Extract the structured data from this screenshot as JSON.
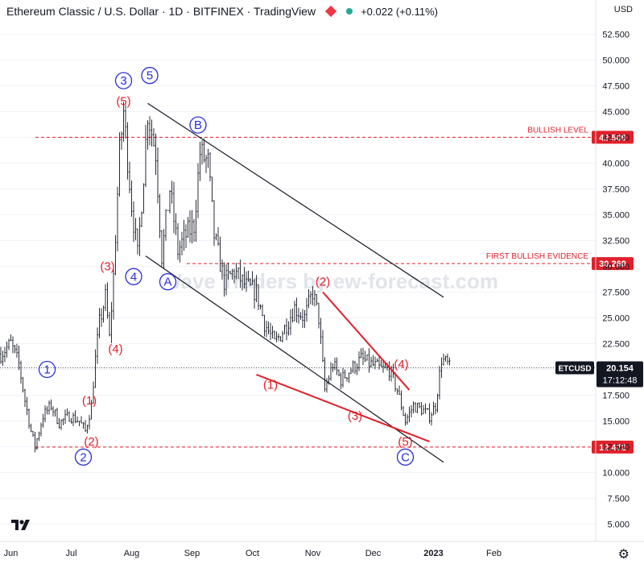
{
  "header": {
    "title": "Ethereum Classic / U.S. Dollar · 1D · BITFINEX · TradingView",
    "change": "+0.022 (+0.11%)"
  },
  "currency_label": "USD",
  "watermark": "Wave Traders by ew-forecast.com",
  "colors": {
    "wave_blue": "#2a2ed8",
    "wave_red": "#e0202a",
    "level_red": "#e0202a",
    "candle": "#131722",
    "channel": "#131722"
  },
  "chart_data": {
    "type": "candlestick",
    "symbol": "ETCUSD",
    "last_price": "20.154",
    "countdown": "17:12:48",
    "x_ticks": [
      "Jun",
      "Jul",
      "Aug",
      "Sep",
      "Oct",
      "Nov",
      "Dec",
      "2023",
      "Feb"
    ],
    "y_ticks": [
      "52.500",
      "50.000",
      "47.500",
      "45.000",
      "42.500",
      "40.000",
      "37.500",
      "35.000",
      "32.500",
      "30.000",
      "27.500",
      "25.000",
      "22.500",
      "20.000",
      "17.500",
      "15.000",
      "12.500",
      "10.000",
      "7.500",
      "5.000"
    ],
    "ylim": [
      3.5,
      54.5
    ],
    "levels": [
      {
        "label": "BULLISH LEVEL",
        "value": 42.509,
        "price_label": "42.509"
      },
      {
        "label": "FIRST BULLISH EVIDENCE",
        "value": 30.26,
        "price_label": "30.260"
      },
      {
        "label": "",
        "value": 12.472,
        "price_label": "12.472"
      }
    ],
    "price_path": [
      [
        "2022-06-01",
        21.5
      ],
      [
        "2022-06-06",
        22.5
      ],
      [
        "2022-06-10",
        20.5
      ],
      [
        "2022-06-13",
        17.0
      ],
      [
        "2022-06-16",
        14.0
      ],
      [
        "2022-06-18",
        12.5
      ],
      [
        "2022-06-22",
        15.5
      ],
      [
        "2022-06-26",
        16.5
      ],
      [
        "2022-06-30",
        14.8
      ],
      [
        "2022-07-05",
        15.5
      ],
      [
        "2022-07-10",
        15.0
      ],
      [
        "2022-07-13",
        14.0
      ],
      [
        "2022-07-16",
        16.5
      ],
      [
        "2022-07-18",
        21.0
      ],
      [
        "2022-07-20",
        24.5
      ],
      [
        "2022-07-23",
        27.0
      ],
      [
        "2022-07-25",
        23.0
      ],
      [
        "2022-07-27",
        29.0
      ],
      [
        "2022-07-30",
        41.0
      ],
      [
        "2022-08-01",
        45.0
      ],
      [
        "2022-08-05",
        36.0
      ],
      [
        "2022-08-08",
        31.0
      ],
      [
        "2022-08-11",
        39.0
      ],
      [
        "2022-08-13",
        45.0
      ],
      [
        "2022-08-17",
        41.0
      ],
      [
        "2022-08-20",
        31.0
      ],
      [
        "2022-08-24",
        37.5
      ],
      [
        "2022-08-28",
        31.5
      ],
      [
        "2022-09-01",
        33.0
      ],
      [
        "2022-09-05",
        34.0
      ],
      [
        "2022-09-08",
        41.0
      ],
      [
        "2022-09-12",
        40.0
      ],
      [
        "2022-09-15",
        33.0
      ],
      [
        "2022-09-20",
        28.5
      ],
      [
        "2022-09-25",
        29.5
      ],
      [
        "2022-10-01",
        28.0
      ],
      [
        "2022-10-06",
        27.5
      ],
      [
        "2022-10-10",
        24.5
      ],
      [
        "2022-10-15",
        22.5
      ],
      [
        "2022-10-20",
        24.0
      ],
      [
        "2022-10-25",
        26.0
      ],
      [
        "2022-10-30",
        25.0
      ],
      [
        "2022-11-03",
        27.5
      ],
      [
        "2022-11-06",
        25.0
      ],
      [
        "2022-11-09",
        18.0
      ],
      [
        "2022-11-13",
        20.5
      ],
      [
        "2022-11-17",
        19.0
      ],
      [
        "2022-11-22",
        20.0
      ],
      [
        "2022-11-27",
        21.0
      ],
      [
        "2022-12-02",
        20.5
      ],
      [
        "2022-12-07",
        20.0
      ],
      [
        "2022-12-11",
        20.0
      ],
      [
        "2022-12-15",
        18.0
      ],
      [
        "2022-12-19",
        15.0
      ],
      [
        "2022-12-23",
        16.5
      ],
      [
        "2022-12-28",
        16.0
      ],
      [
        "2022-12-31",
        15.5
      ],
      [
        "2023-01-03",
        16.5
      ],
      [
        "2023-01-06",
        21.0
      ],
      [
        "2023-01-09",
        20.5
      ],
      [
        "2023-01-10",
        20.15
      ]
    ],
    "waves": [
      {
        "label": "1",
        "style": "circle-blue",
        "date": "2022-06-24",
        "value": 20.0
      },
      {
        "label": "2",
        "style": "circle-blue",
        "date": "2022-07-12",
        "value": 11.5
      },
      {
        "label": "3",
        "style": "circle-blue",
        "date": "2022-08-01",
        "value": 48.0
      },
      {
        "label": "4",
        "style": "circle-blue",
        "date": "2022-08-06",
        "value": 29.0
      },
      {
        "label": "5",
        "style": "circle-blue",
        "date": "2022-08-14",
        "value": 48.5
      },
      {
        "label": "A",
        "style": "circle-blue",
        "date": "2022-08-23",
        "value": 28.5
      },
      {
        "label": "B",
        "style": "circle-blue",
        "date": "2022-09-07",
        "value": 43.7
      },
      {
        "label": "C",
        "style": "circle-blue",
        "date": "2022-12-19",
        "value": 11.5
      },
      {
        "label": "(1)",
        "style": "red",
        "date": "2022-07-15",
        "value": 17.0
      },
      {
        "label": "(2)",
        "style": "red",
        "date": "2022-07-16",
        "value": 13.0
      },
      {
        "label": "(3)",
        "style": "red",
        "date": "2022-07-24",
        "value": 30.0
      },
      {
        "label": "(4)",
        "style": "red",
        "date": "2022-07-28",
        "value": 22.0
      },
      {
        "label": "(5)",
        "style": "red",
        "date": "2022-08-01",
        "value": 46.0
      },
      {
        "label": "(1)",
        "style": "red",
        "date": "2022-10-13",
        "value": 18.5
      },
      {
        "label": "(2)",
        "style": "red",
        "date": "2022-11-08",
        "value": 28.5
      },
      {
        "label": "(3)",
        "style": "red",
        "date": "2022-11-24",
        "value": 15.5
      },
      {
        "label": "(4)",
        "style": "red",
        "date": "2022-12-17",
        "value": 20.5
      },
      {
        "label": "(5)",
        "style": "red",
        "date": "2022-12-19",
        "value": 13.0
      }
    ],
    "channel_lines": [
      {
        "from": [
          "2022-08-13",
          45.8
        ],
        "to": [
          "2023-01-07",
          27.0
        ]
      },
      {
        "from": [
          "2022-08-12",
          31.0
        ],
        "to": [
          "2023-01-07",
          11.0
        ]
      }
    ],
    "wedge_lines": [
      {
        "from": [
          "2022-10-06",
          19.5
        ],
        "to": [
          "2022-12-31",
          13.0
        ]
      },
      {
        "from": [
          "2022-11-08",
          27.5
        ],
        "to": [
          "2022-12-21",
          18.0
        ]
      }
    ]
  }
}
